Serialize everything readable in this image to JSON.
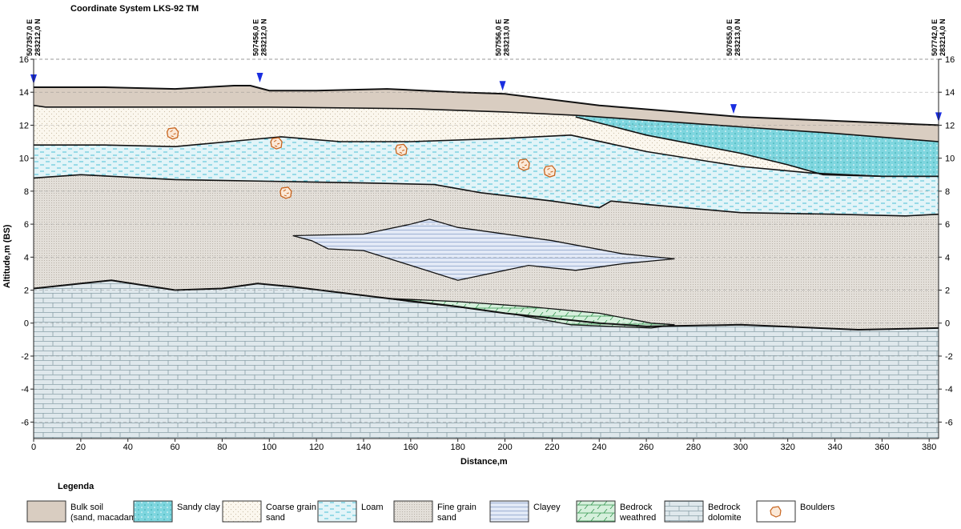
{
  "title": "Coordinate System LKS-92 TM",
  "chart_data": {
    "type": "geological-cross-section",
    "xlabel": "Distance,m",
    "ylabel": "Altitude,m (BS)",
    "xlim": [
      0,
      384
    ],
    "ylim": [
      -7,
      16
    ],
    "xticks": [
      0,
      20,
      40,
      60,
      80,
      100,
      120,
      140,
      160,
      180,
      200,
      220,
      240,
      260,
      280,
      300,
      320,
      340,
      360,
      380
    ],
    "yticks": [
      16,
      14,
      12,
      10,
      8,
      6,
      4,
      2,
      0,
      -2,
      -4,
      -6
    ],
    "grid": "dashed horizontal",
    "boreholes": [
      {
        "distance": 0,
        "label_e": "507357,0 E",
        "label_n": "283212,0 N"
      },
      {
        "distance": 96,
        "label_e": "507456,0 E",
        "label_n": "283212,0 N"
      },
      {
        "distance": 199,
        "label_e": "507556,0 E",
        "label_n": "283213,0 N"
      },
      {
        "distance": 297,
        "label_e": "507655,0 E",
        "label_n": "283213,0 N"
      },
      {
        "distance": 384,
        "label_e": "507742,0 E",
        "label_n": "283214,0 N"
      }
    ],
    "boundaries": {
      "surface": [
        [
          0,
          14.3
        ],
        [
          30,
          14.3
        ],
        [
          60,
          14.2
        ],
        [
          85,
          14.4
        ],
        [
          92,
          14.4
        ],
        [
          100,
          14.1
        ],
        [
          120,
          14.1
        ],
        [
          150,
          14.2
        ],
        [
          180,
          14.0
        ],
        [
          200,
          13.9
        ],
        [
          240,
          13.2
        ],
        [
          300,
          12.5
        ],
        [
          384,
          12.0
        ]
      ],
      "bulk_bottom": [
        [
          0,
          13.2
        ],
        [
          5,
          13.1
        ],
        [
          100,
          13.1
        ],
        [
          160,
          13.0
        ],
        [
          200,
          12.8
        ],
        [
          230,
          12.6
        ],
        [
          270,
          12.2
        ],
        [
          300,
          11.9
        ],
        [
          340,
          11.5
        ],
        [
          384,
          11.0
        ]
      ],
      "sandy_clay_bottom": [
        [
          230,
          12.5
        ],
        [
          260,
          11.4
        ],
        [
          300,
          10.3
        ],
        [
          320,
          9.6
        ],
        [
          335,
          9.0
        ],
        [
          360,
          8.9
        ],
        [
          384,
          8.9
        ]
      ],
      "loam_top": [
        [
          0,
          10.8
        ],
        [
          30,
          10.8
        ],
        [
          60,
          10.7
        ],
        [
          90,
          11.1
        ],
        [
          105,
          11.3
        ],
        [
          130,
          11.0
        ],
        [
          160,
          11.0
        ],
        [
          200,
          11.2
        ],
        [
          228,
          11.4
        ],
        [
          260,
          10.4
        ],
        [
          300,
          9.5
        ],
        [
          330,
          9.1
        ],
        [
          360,
          8.9
        ],
        [
          384,
          8.9
        ]
      ],
      "fine_sand_top": [
        [
          0,
          8.8
        ],
        [
          20,
          9.0
        ],
        [
          60,
          8.7
        ],
        [
          100,
          8.6
        ],
        [
          140,
          8.5
        ],
        [
          170,
          8.4
        ],
        [
          190,
          7.9
        ],
        [
          220,
          7.4
        ],
        [
          240,
          7.0
        ],
        [
          245,
          7.4
        ],
        [
          260,
          7.2
        ],
        [
          300,
          6.7
        ],
        [
          340,
          6.6
        ],
        [
          370,
          6.5
        ],
        [
          384,
          6.6
        ]
      ],
      "bedrock_top": [
        [
          0,
          2.1
        ],
        [
          20,
          2.4
        ],
        [
          33,
          2.6
        ],
        [
          60,
          2.0
        ],
        [
          80,
          2.1
        ],
        [
          95,
          2.4
        ],
        [
          110,
          2.2
        ],
        [
          150,
          1.5
        ],
        [
          180,
          1.0
        ],
        [
          200,
          0.6
        ],
        [
          240,
          0.0
        ],
        [
          260,
          -0.2
        ],
        [
          300,
          -0.1
        ],
        [
          350,
          -0.4
        ],
        [
          384,
          -0.3
        ]
      ],
      "clayey_lens": [
        [
          110,
          5.3
        ],
        [
          140,
          5.4
        ],
        [
          160,
          6.0
        ],
        [
          168,
          6.3
        ],
        [
          180,
          5.8
        ],
        [
          220,
          5.0
        ],
        [
          250,
          4.2
        ],
        [
          272,
          3.9
        ],
        [
          250,
          3.6
        ],
        [
          230,
          3.2
        ],
        [
          210,
          3.5
        ],
        [
          180,
          2.6
        ],
        [
          160,
          3.5
        ],
        [
          140,
          4.4
        ],
        [
          125,
          4.5
        ],
        [
          118,
          5.0
        ]
      ],
      "weathered_lens": [
        [
          150,
          1.5
        ],
        [
          180,
          1.3
        ],
        [
          210,
          1.0
        ],
        [
          240,
          0.6
        ],
        [
          262,
          0.0
        ],
        [
          272,
          -0.1
        ],
        [
          262,
          -0.3
        ],
        [
          245,
          -0.2
        ],
        [
          228,
          -0.1
        ],
        [
          205,
          0.5
        ],
        [
          185,
          0.9
        ],
        [
          160,
          1.3
        ]
      ]
    },
    "boulders": [
      [
        59,
        11.5
      ],
      [
        103,
        10.9
      ],
      [
        156,
        10.5
      ],
      [
        208,
        9.6
      ],
      [
        219,
        9.2
      ],
      [
        107,
        7.9
      ]
    ]
  },
  "legend": {
    "title": "Legenda",
    "items": [
      {
        "key": "bulk",
        "line1": "Bulk soil",
        "line2": "(sand, macadam)",
        "color": "#d9cdc1"
      },
      {
        "key": "sandyclay",
        "line1": "Sandy clay",
        "line2": "",
        "color": "#7fd6df"
      },
      {
        "key": "coarse",
        "line1": "Coarse grain",
        "line2": "sand",
        "color": "#fbf7ee"
      },
      {
        "key": "loam",
        "line1": "Loam",
        "line2": "",
        "color": "#e2f4f8"
      },
      {
        "key": "fine",
        "line1": "Fine grain",
        "line2": "sand",
        "color": "#e1ddd7"
      },
      {
        "key": "clayey",
        "line1": "Clayey",
        "line2": "",
        "color": "#e2e9f6"
      },
      {
        "key": "weathered",
        "line1": "Bedrock",
        "line2": "weathred",
        "color": "#d6f0dc"
      },
      {
        "key": "dolomite",
        "line1": "Bedrock",
        "line2": "dolomite",
        "color": "#dfe8ec"
      },
      {
        "key": "boulders",
        "line1": "Boulders",
        "line2": "",
        "color": "#ffffff"
      }
    ]
  }
}
